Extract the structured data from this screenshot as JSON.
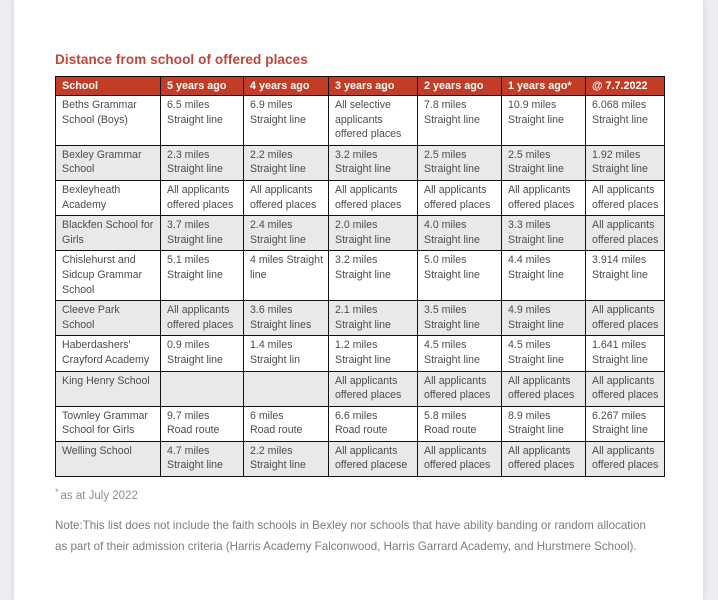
{
  "title": "Distance from school of offered places",
  "table": {
    "columns": [
      "School",
      "5 years ago",
      "4 years ago",
      "3 years ago",
      "2 years ago",
      "1 years ago*",
      "@ 7.7.2022"
    ],
    "rows": [
      {
        "school": "Beths Grammar School (Boys)",
        "cells": [
          "6.5 miles\nStraight line",
          "6.9 miles\nStraight line",
          "All selective\napplicants\noffered places",
          "7.8 miles\nStraight line",
          "10.9 miles\nStraight line",
          "6.068 miles\nStraight line"
        ]
      },
      {
        "school": "Bexley Grammar School",
        "cells": [
          "2.3 miles\nStraight line",
          "2.2 miles\nStraight line",
          "3.2 miles\nStraight line",
          "2.5 miles\nStraight line",
          "2.5 miles\nStraight line",
          "1.92 miles\nStraight line"
        ]
      },
      {
        "school": "Bexleyheath Academy",
        "cells": [
          "All applicants\noffered places",
          "All applicants\noffered places",
          "All applicants\noffered places",
          "All applicants\noffered places",
          "All applicants\noffered places",
          "All applicants\noffered places"
        ]
      },
      {
        "school": "Blackfen School for Girls",
        "cells": [
          "3.7 miles\nStraight line",
          "2.4 miles\nStraight line",
          "2.0 miles\nStraight line",
          "4.0 miles\nStraight line",
          "3.3 miles\nStraight line",
          "All applicants\noffered places"
        ]
      },
      {
        "school": "Chislehurst and Sidcup Grammar School",
        "cells": [
          "5.1 miles\nStraight line",
          "4 miles Straight\nline",
          "3.2 miles\nStraight line",
          "5.0 miles\nStraight line",
          "4.4 miles\nStraight line",
          "3.914 miles\nStraight line"
        ]
      },
      {
        "school": "Cleeve Park School",
        "cells": [
          "All applicants\noffered places",
          "3.6 miles\nStraight lines",
          "2.1 miles\nStraight line",
          "3.5 miles\nStraight line",
          "4.9 miles\nStraight line",
          "All applicants\noffered places"
        ]
      },
      {
        "school": "Haberdashers' Crayford Academy",
        "cells": [
          "0.9 miles\nStraight line",
          "1.4 miles\nStraight lin",
          "1.2 miles\nStraight line",
          "4.5 miles\nStraight line",
          "4.5 miles\nStraight line",
          "1.641 miles\nStraight line"
        ]
      },
      {
        "school": "King Henry School",
        "cells": [
          "",
          "",
          "All applicants\noffered places",
          "All applicants\noffered places",
          "All applicants\noffered places",
          "All applicants\noffered places"
        ]
      },
      {
        "school": "Townley Grammar School for Girls",
        "cells": [
          "9.7 miles\nRoad route",
          "6 miles\nRoad route",
          "6.6 miles\nRoad route",
          "5.8 miles\nRoad route",
          "8.9 miles\nStraight line",
          "6.267 miles\nStraight line"
        ]
      },
      {
        "school": "Welling School",
        "cells": [
          "4.7 miles\nStraight line",
          "2.2 miles\nStraight line",
          "All applicants\noffered placese",
          "All applicants\noffered places",
          "All applicants\noffered places",
          "All applicants\noffered places"
        ]
      }
    ]
  },
  "footnote": {
    "marker": "*",
    "text": "as at July 2022"
  },
  "note": "Note:This list does not include the faith schools in Bexley nor schools that have ability banding or random allocation as part of their admission criteria (Harris Academy Falconwood, Harris Garrard Academy, and Hurstmere School).",
  "colors": {
    "header_background": "#c23c26",
    "title_red": "#c0453a",
    "stripe_gray": "#e9e9e9"
  }
}
